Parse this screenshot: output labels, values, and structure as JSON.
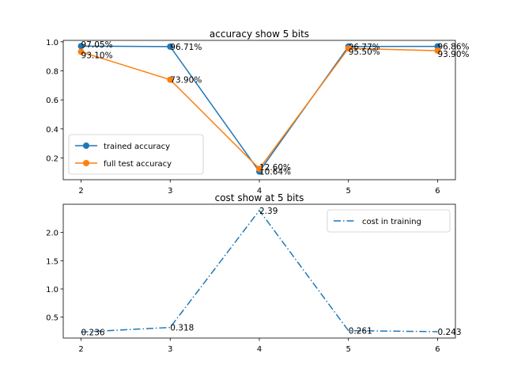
{
  "chart_data": [
    {
      "type": "line",
      "title": "accuracy show 5 bits",
      "x": [
        2,
        3,
        4,
        5,
        6
      ],
      "xticks": [
        2,
        3,
        4,
        5,
        6
      ],
      "yticks": [
        0.2,
        0.4,
        0.6,
        0.8,
        1.0
      ],
      "ytick_labels": [
        "0.2",
        "0.4",
        "0.6",
        "0.8",
        "1.0"
      ],
      "ylim": [
        0.05,
        1.01
      ],
      "xlim": [
        1.8,
        6.2
      ],
      "legend": "lower-left",
      "grid": false,
      "series": [
        {
          "name": "trained accuracy",
          "color": "#1f77b4",
          "values": [
            0.9705,
            0.9671,
            0.1064,
            0.9677,
            0.9686
          ],
          "labels": [
            "97.05%",
            "96.71%",
            "10.64%",
            "96.77%",
            "96.86%"
          ]
        },
        {
          "name": "full test accuracy",
          "color": "#ff7f0e",
          "values": [
            0.931,
            0.739,
            0.126,
            0.955,
            0.939
          ],
          "labels": [
            "93.10%",
            "73.90%",
            "12.60%",
            "95.50%",
            "93.90%"
          ]
        }
      ]
    },
    {
      "type": "line",
      "title": "cost show at 5 bits",
      "x": [
        2,
        3,
        4,
        5,
        6
      ],
      "xticks": [
        2,
        3,
        4,
        5,
        6
      ],
      "yticks": [
        0.5,
        1.0,
        1.5,
        2.0
      ],
      "ytick_labels": [
        "0.5",
        "1.0",
        "1.5",
        "2.0"
      ],
      "ylim": [
        0.13,
        2.5
      ],
      "xlim": [
        1.8,
        6.2
      ],
      "legend": "top-right",
      "grid": false,
      "series": [
        {
          "name": "cost in training",
          "color": "#1f77b4",
          "linestyle": "dash-dot",
          "values": [
            0.236,
            0.318,
            2.39,
            0.261,
            0.243
          ],
          "labels": [
            "0.236",
            "0.318",
            "2.39",
            "0.261",
            "0.243"
          ]
        }
      ]
    }
  ]
}
